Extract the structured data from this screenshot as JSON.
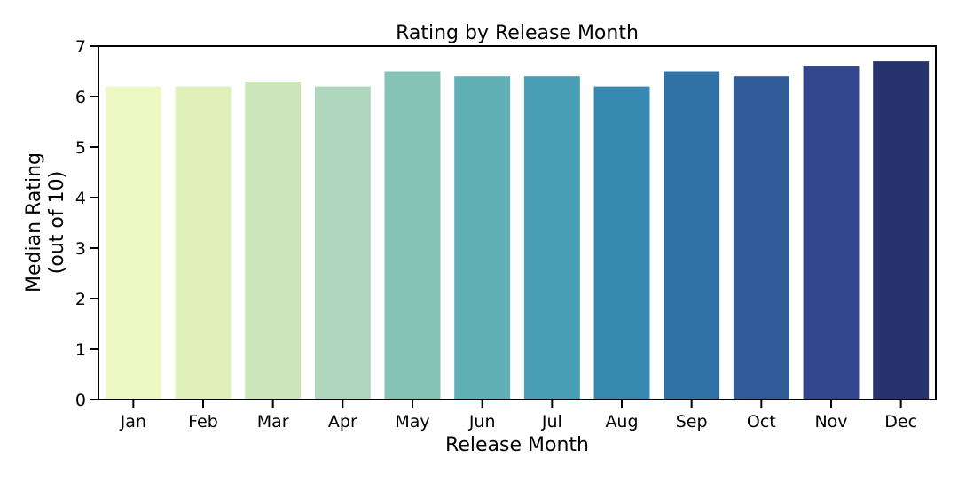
{
  "chart_data": {
    "type": "bar",
    "title": "Rating by Release Month",
    "xlabel": "Release Month",
    "ylabel_lines": [
      "Median Rating",
      "(out of 10)"
    ],
    "categories": [
      "Jan",
      "Feb",
      "Mar",
      "Apr",
      "May",
      "Jun",
      "Jul",
      "Aug",
      "Sep",
      "Oct",
      "Nov",
      "Dec"
    ],
    "values": [
      6.2,
      6.2,
      6.3,
      6.2,
      6.5,
      6.4,
      6.4,
      6.2,
      6.5,
      6.4,
      6.6,
      6.7
    ],
    "colors": [
      "#edf8c5",
      "#e0f0bb",
      "#cde6b9",
      "#add6bc",
      "#84c3b5",
      "#61b0b6",
      "#489fb5",
      "#3689b0",
      "#3171a3",
      "#315b98",
      "#33468d",
      "#27336d"
    ],
    "ylim": [
      0,
      7
    ],
    "yticks": [
      "0",
      "1",
      "2",
      "3",
      "4",
      "5",
      "6",
      "7"
    ],
    "grid": false,
    "legend": "none"
  }
}
